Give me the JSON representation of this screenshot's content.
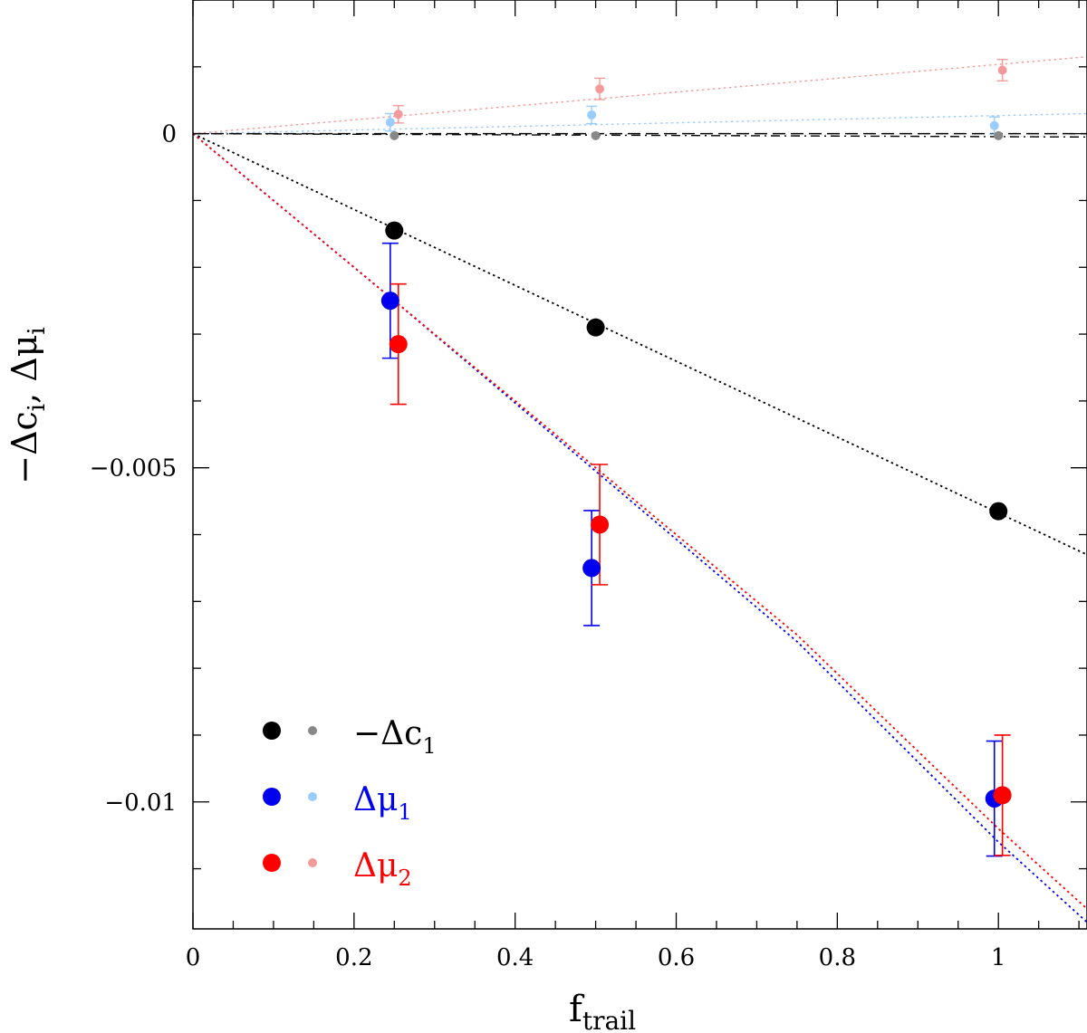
{
  "chart_data": {
    "type": "scatter",
    "title": "",
    "xlabel": "f",
    "xlabel_sub": "trail",
    "ylabel_parts": [
      "−Δc",
      "i",
      ",  Δμ",
      "i"
    ],
    "xlim": [
      0,
      1.11
    ],
    "ylim": [
      -0.0119,
      0.002
    ],
    "xticks": [
      0,
      0.2,
      0.4,
      0.6,
      0.8,
      1
    ],
    "xtick_labels": [
      "0",
      "0.2",
      "0.4",
      "0.6",
      "0.8",
      "1"
    ],
    "yticks": [
      0,
      -0.005,
      -0.01
    ],
    "ytick_labels": [
      "0",
      "−0.005",
      "−0.01"
    ],
    "x_minor_step": 0.05,
    "y_minor_step": 0.001,
    "zero_line": true,
    "series": [
      {
        "name": "-Δc1",
        "color": "#000000",
        "marker": "large",
        "points": [
          {
            "x": 0.25,
            "y": -0.00145
          },
          {
            "x": 0.5,
            "y": -0.0029
          },
          {
            "x": 1.0,
            "y": -0.00565
          }
        ],
        "fit": {
          "x": [
            0,
            1.11
          ],
          "y": [
            0,
            -0.0063
          ],
          "style": "dotted"
        }
      },
      {
        "name": "Δμ1",
        "color": "#0000ee",
        "marker": "large",
        "points": [
          {
            "x": 0.245,
            "y": -0.0025,
            "err": 0.00086
          },
          {
            "x": 0.495,
            "y": -0.0065,
            "err": 0.00086
          },
          {
            "x": 0.995,
            "y": -0.00995,
            "err": 0.00086
          }
        ],
        "fit": {
          "x": [
            0,
            0.25,
            0.5,
            0.75,
            1.0,
            1.11
          ],
          "y": [
            0,
            -0.0025,
            -0.00505,
            -0.0076,
            -0.0106,
            -0.0118
          ],
          "style": "dotted"
        }
      },
      {
        "name": "Δμ2",
        "color": "#ff0000",
        "marker": "large",
        "points": [
          {
            "x": 0.255,
            "y": -0.00315,
            "err": 0.0009
          },
          {
            "x": 0.505,
            "y": -0.00585,
            "err": 0.0009
          },
          {
            "x": 1.005,
            "y": -0.0099,
            "err": 0.0009
          }
        ],
        "fit": {
          "x": [
            0,
            0.25,
            0.5,
            0.75,
            1.0,
            1.11
          ],
          "y": [
            0,
            -0.0025,
            -0.005,
            -0.0075,
            -0.0104,
            -0.0116
          ],
          "style": "dotted"
        }
      },
      {
        "name": "-Δc1 (small)",
        "color": "#888888",
        "marker": "small",
        "points": [
          {
            "x": 0.25,
            "y": -3e-05
          },
          {
            "x": 0.5,
            "y": -3e-05
          },
          {
            "x": 1.0,
            "y": -3e-05
          }
        ],
        "fit": {
          "x": [
            0,
            1.11
          ],
          "y": [
            0,
            -5e-05
          ],
          "style": "dashed",
          "line_color": "#000000"
        }
      },
      {
        "name": "Δμ1 (small)",
        "color": "#99ccff",
        "marker": "small",
        "points": [
          {
            "x": 0.245,
            "y": 0.00017,
            "err": 0.00013
          },
          {
            "x": 0.495,
            "y": 0.00028,
            "err": 0.00013
          },
          {
            "x": 0.995,
            "y": 0.00012,
            "err": 0.00013
          }
        ],
        "fit": {
          "x": [
            0,
            1.11
          ],
          "y": [
            0,
            0.0003
          ],
          "style": "dotted"
        }
      },
      {
        "name": "Δμ2 (small)",
        "color": "#f59a9a",
        "marker": "small",
        "points": [
          {
            "x": 0.255,
            "y": 0.00029,
            "err": 0.00013
          },
          {
            "x": 0.505,
            "y": 0.00067,
            "err": 0.00016
          },
          {
            "x": 1.005,
            "y": 0.00095,
            "err": 0.00016
          }
        ],
        "fit": {
          "x": [
            0,
            1.11
          ],
          "y": [
            0,
            0.00115
          ],
          "style": "dotted"
        }
      }
    ],
    "legend": {
      "placement": "bottom-left",
      "entries": [
        {
          "label_main": "−Δc",
          "label_sub": "1",
          "color": "#000000",
          "text_color": "#000000",
          "small_color": "#888888"
        },
        {
          "label_main": "Δμ",
          "label_sub": "1",
          "color": "#0000ee",
          "text_color": "#0000ee",
          "small_color": "#99ccff"
        },
        {
          "label_main": "Δμ",
          "label_sub": "2",
          "color": "#ff0000",
          "text_color": "#ff0000",
          "small_color": "#f59a9a"
        }
      ]
    }
  }
}
